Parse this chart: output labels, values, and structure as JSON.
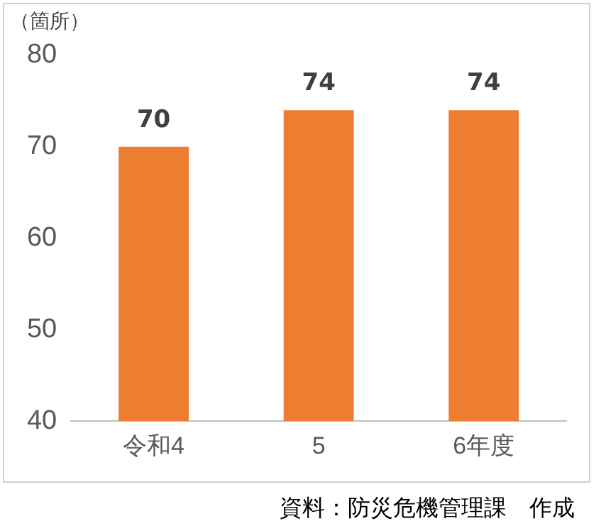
{
  "chart_data": {
    "type": "bar",
    "ylabel": "（箇所）",
    "categories": [
      "令和4",
      "5",
      "6年度"
    ],
    "values": [
      70,
      74,
      74
    ],
    "color": "#ed7d31",
    "ylim": [
      40,
      80
    ],
    "yticks": [
      40,
      50,
      60,
      70,
      80
    ],
    "grid": false,
    "legend": false,
    "data_labels": true,
    "annotations": [
      "資料：防災危機管理課　作成"
    ]
  }
}
